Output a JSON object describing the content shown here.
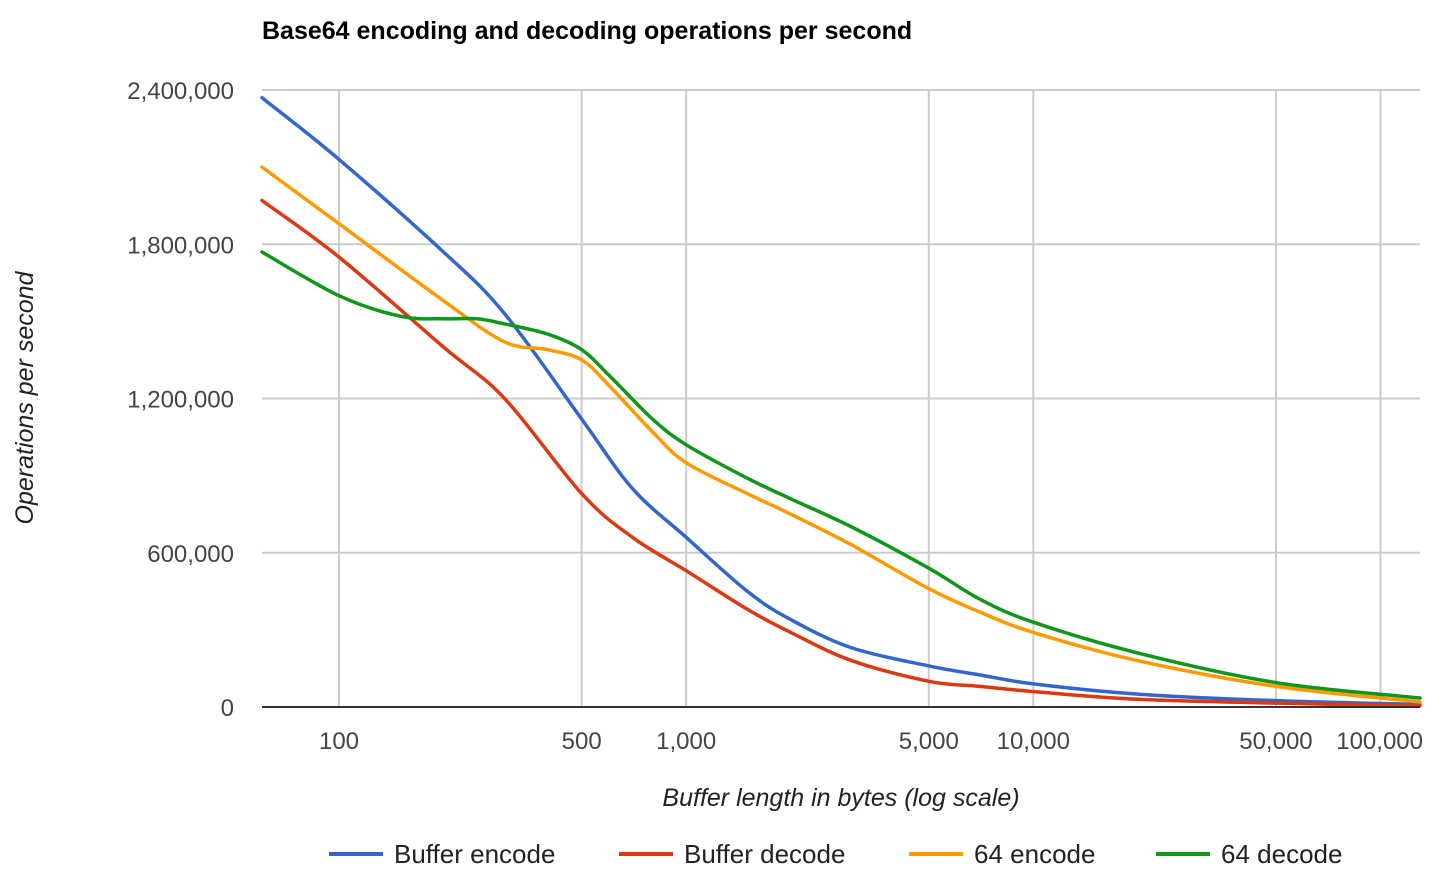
{
  "chart_data": {
    "type": "line",
    "title": "Base64 encoding and decoding operations per second",
    "xlabel": "Buffer length in bytes (log scale)",
    "ylabel": "Operations per second",
    "xscale": "log",
    "xlim": [
      60,
      130000
    ],
    "ylim": [
      0,
      2400000
    ],
    "yticks": [
      0,
      600000,
      1200000,
      1800000,
      2400000
    ],
    "ytick_labels": [
      "0",
      "600,000",
      "1,200,000",
      "1,800,000",
      "2,400,000"
    ],
    "xticks": [
      100,
      500,
      1000,
      5000,
      10000,
      50000,
      100000
    ],
    "xtick_labels": [
      "100",
      "500",
      "1,000",
      "5,000",
      "10,000",
      "50,000",
      "100,000"
    ],
    "grid": true,
    "legend_position": "bottom",
    "series": [
      {
        "name": "Buffer encode",
        "color": "#3366cc",
        "x": [
          60,
          100,
          200,
          300,
          500,
          700,
          1000,
          1500,
          2000,
          3000,
          5000,
          7000,
          10000,
          20000,
          50000,
          130000
        ],
        "values": [
          2370000,
          2130000,
          1770000,
          1530000,
          1120000,
          850000,
          660000,
          450000,
          340000,
          230000,
          160000,
          125000,
          90000,
          50000,
          25000,
          10000
        ]
      },
      {
        "name": "Buffer decode",
        "color": "#dc3912",
        "x": [
          60,
          100,
          200,
          300,
          500,
          700,
          1000,
          1500,
          2000,
          3000,
          5000,
          7000,
          10000,
          20000,
          50000,
          130000
        ],
        "values": [
          1970000,
          1750000,
          1400000,
          1200000,
          830000,
          660000,
          530000,
          380000,
          290000,
          180000,
          100000,
          80000,
          60000,
          30000,
          15000,
          5000
        ]
      },
      {
        "name": "64 encode",
        "color": "#ff9900",
        "x": [
          60,
          100,
          200,
          300,
          400,
          500,
          600,
          800,
          1000,
          1500,
          2000,
          3000,
          5000,
          7000,
          10000,
          20000,
          50000,
          130000
        ],
        "values": [
          2100000,
          1880000,
          1580000,
          1420000,
          1390000,
          1350000,
          1250000,
          1070000,
          950000,
          830000,
          750000,
          630000,
          460000,
          370000,
          290000,
          180000,
          80000,
          20000
        ]
      },
      {
        "name": "64 decode",
        "color": "#109618",
        "x": [
          60,
          100,
          150,
          200,
          250,
          300,
          400,
          500,
          600,
          800,
          1000,
          1500,
          2000,
          3000,
          5000,
          7000,
          10000,
          20000,
          50000,
          130000
        ],
        "values": [
          1770000,
          1600000,
          1520000,
          1510000,
          1510000,
          1490000,
          1450000,
          1390000,
          1290000,
          1120000,
          1020000,
          890000,
          810000,
          700000,
          540000,
          420000,
          330000,
          210000,
          95000,
          35000
        ]
      }
    ]
  }
}
